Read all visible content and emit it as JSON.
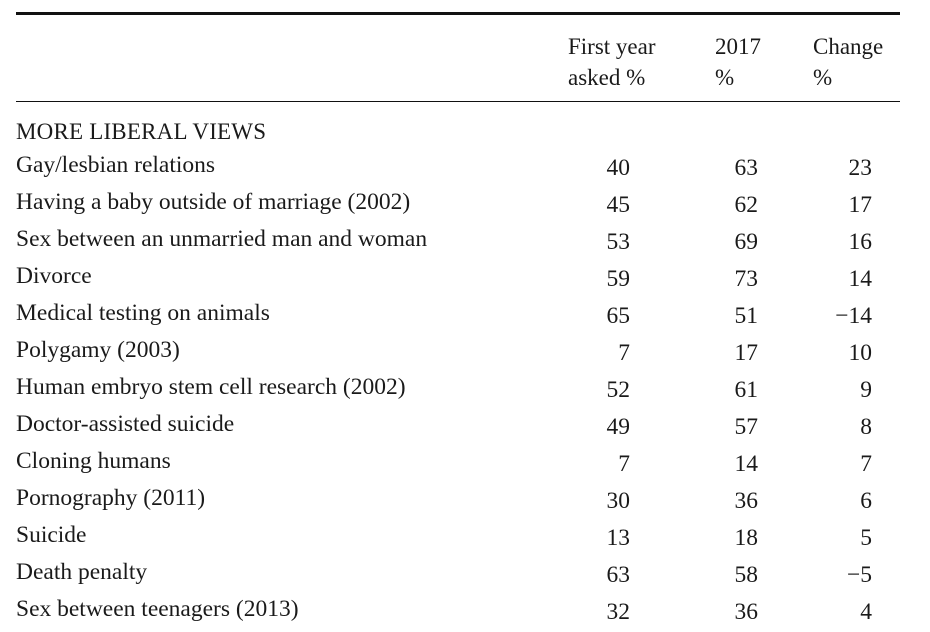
{
  "table": {
    "headers": {
      "first_year_line1": "First year",
      "first_year_line2": "asked %",
      "y2017_line1": "2017",
      "y2017_line2": "%",
      "change_line1": "Change",
      "change_line2": "%"
    },
    "section_title": "MORE LIBERAL VIEWS",
    "rows": [
      {
        "label": "Gay/lesbian relations",
        "first": "40",
        "y2017": "63",
        "change": "23"
      },
      {
        "label": "Having a baby outside of marriage (2002)",
        "first": "45",
        "y2017": "62",
        "change": "17"
      },
      {
        "label": "Sex between an unmarried man and woman",
        "first": "53",
        "y2017": "69",
        "change": "16"
      },
      {
        "label": "Divorce",
        "first": "59",
        "y2017": "73",
        "change": "14"
      },
      {
        "label": "Medical testing on animals",
        "first": "65",
        "y2017": "51",
        "change": "−14"
      },
      {
        "label": "Polygamy (2003)",
        "first": "7",
        "y2017": "17",
        "change": "10"
      },
      {
        "label": "Human embryo stem cell research (2002)",
        "first": "52",
        "y2017": "61",
        "change": "9"
      },
      {
        "label": "Doctor-assisted suicide",
        "first": "49",
        "y2017": "57",
        "change": "8"
      },
      {
        "label": "Cloning humans",
        "first": "7",
        "y2017": "14",
        "change": "7"
      },
      {
        "label": "Pornography (2011)",
        "first": "30",
        "y2017": "36",
        "change": "6"
      },
      {
        "label": "Suicide",
        "first": "13",
        "y2017": "18",
        "change": "5"
      },
      {
        "label": "Death penalty",
        "first": "63",
        "y2017": "58",
        "change": "−5"
      },
      {
        "label": "Sex between teenagers (2013)",
        "first": "32",
        "y2017": "36",
        "change": "4"
      }
    ]
  }
}
